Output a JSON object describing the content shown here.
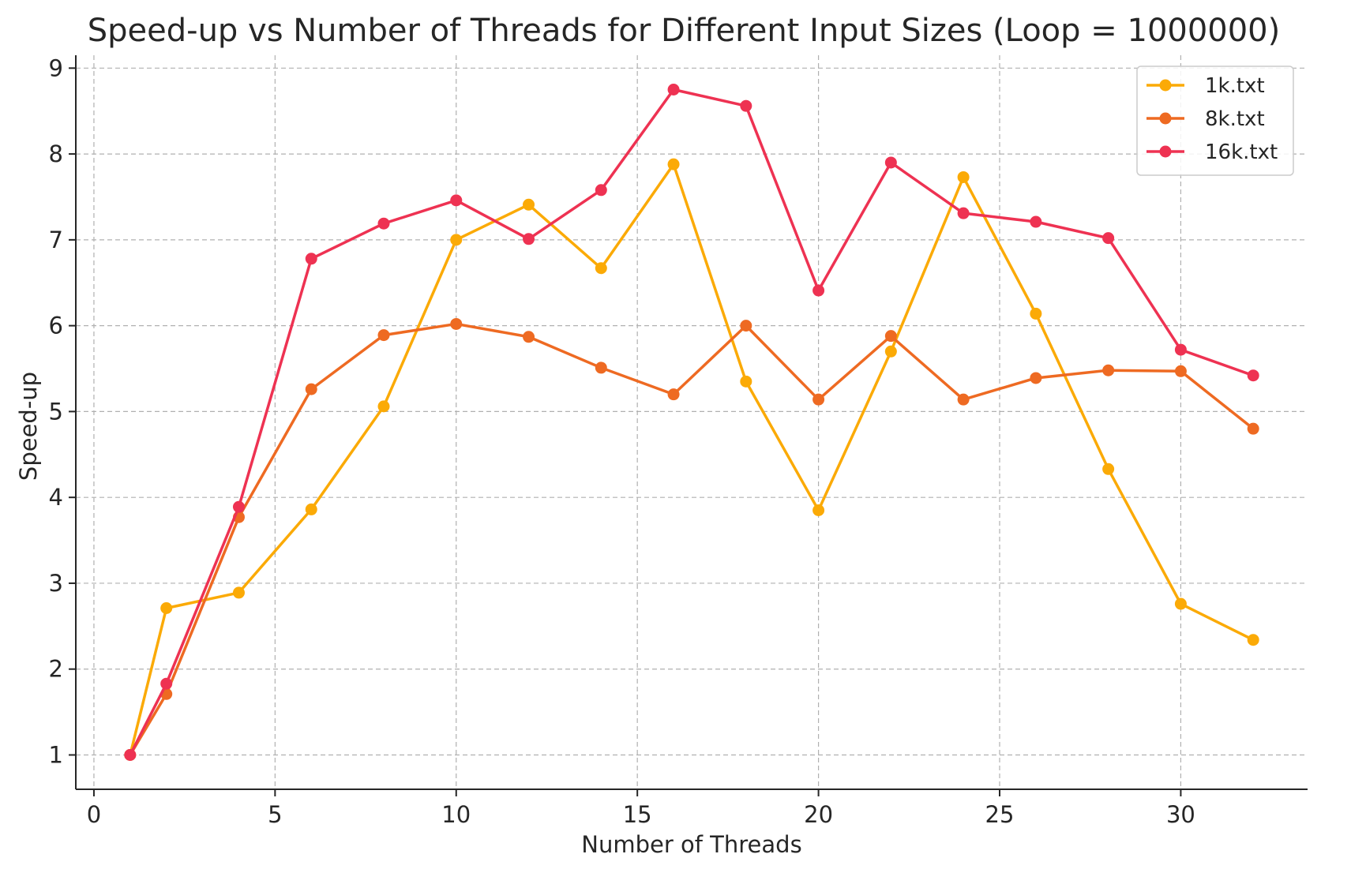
{
  "chart_data": {
    "type": "line",
    "title": "Speed-up vs Number of Threads for Different Input Sizes (Loop = 1000000)",
    "xlabel": "Number of Threads",
    "ylabel": "Speed-up",
    "xlim": [
      -0.5,
      33.5
    ],
    "ylim": [
      0.6,
      9.15
    ],
    "xticks": [
      0,
      5,
      10,
      15,
      20,
      25,
      30
    ],
    "yticks": [
      1,
      2,
      3,
      4,
      5,
      6,
      7,
      8,
      9
    ],
    "grid": true,
    "legend_position": "top-right",
    "x": [
      1,
      2,
      4,
      6,
      8,
      10,
      12,
      14,
      16,
      18,
      20,
      22,
      24,
      26,
      28,
      30,
      32
    ],
    "series": [
      {
        "name": "1k.txt",
        "color": "#FBAA06",
        "values": [
          1.0,
          2.71,
          2.89,
          3.86,
          5.06,
          7.0,
          7.41,
          6.67,
          7.88,
          5.35,
          3.85,
          5.7,
          7.73,
          6.14,
          4.33,
          2.76,
          2.34
        ]
      },
      {
        "name": "8k.txt",
        "color": "#EE6A22",
        "values": [
          1.0,
          1.71,
          3.77,
          5.26,
          5.89,
          6.02,
          5.87,
          5.51,
          5.2,
          6.0,
          5.14,
          5.88,
          5.14,
          5.39,
          5.48,
          5.47,
          4.8
        ]
      },
      {
        "name": "16k.txt",
        "color": "#EE3252",
        "values": [
          1.0,
          1.83,
          3.89,
          6.78,
          7.19,
          7.46,
          7.01,
          7.58,
          8.75,
          8.56,
          6.41,
          7.9,
          7.31,
          7.21,
          7.02,
          5.72,
          5.42
        ]
      }
    ]
  }
}
